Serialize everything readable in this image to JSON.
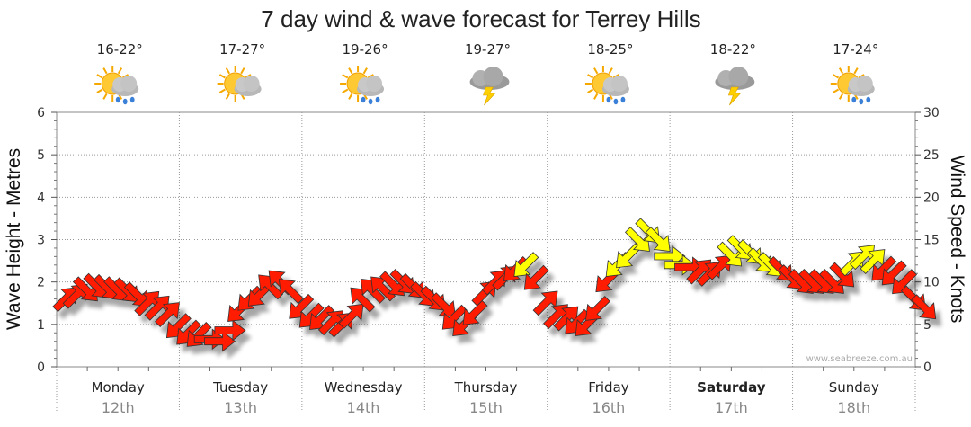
{
  "chart_data": {
    "type": "line",
    "title": "7 day wind & wave forecast for Terrey Hills",
    "ylabel_left": "Wave Height - Metres",
    "ylabel_right": "Wind Speed - Knots",
    "ylim_left": [
      0,
      6
    ],
    "ylim_right": [
      0,
      30
    ],
    "yticks_left": [
      "0",
      "1",
      "2",
      "3",
      "4",
      "5",
      "6"
    ],
    "yticks_right": [
      "0",
      "5",
      "10",
      "15",
      "20",
      "25",
      "30"
    ],
    "credit": "www.seabreeze.com.au",
    "days": [
      {
        "name": "Monday",
        "date": "12th",
        "temp": "16-22°",
        "icon": "sun-rain-icon",
        "bold": false
      },
      {
        "name": "Tuesday",
        "date": "13th",
        "temp": "17-27°",
        "icon": "sun-cloud-icon",
        "bold": false
      },
      {
        "name": "Wednesday",
        "date": "14th",
        "temp": "19-26°",
        "icon": "sun-rain-icon",
        "bold": false
      },
      {
        "name": "Thursday",
        "date": "15th",
        "temp": "19-27°",
        "icon": "storm-icon",
        "bold": false
      },
      {
        "name": "Friday",
        "date": "16th",
        "temp": "18-25°",
        "icon": "sun-rain-icon",
        "bold": false
      },
      {
        "name": "Saturday",
        "date": "17th",
        "temp": "18-22°",
        "icon": "storm-icon",
        "bold": true
      },
      {
        "name": "Sunday",
        "date": "18th",
        "temp": "17-24°",
        "icon": "sun-rain-icon",
        "bold": false
      }
    ],
    "series": [
      {
        "name": "Wind Speed (knots)",
        "x_hours": [
          0,
          6,
          12,
          18,
          24,
          30,
          36,
          42,
          48,
          54,
          60,
          66,
          72,
          78,
          84,
          90,
          96,
          102,
          108,
          114,
          120,
          126,
          132,
          138,
          144,
          150,
          156,
          162,
          168
        ],
        "values": [
          8,
          9.5,
          9,
          7,
          4,
          3,
          8,
          10,
          6,
          5,
          9,
          10,
          8,
          5,
          10,
          12,
          6,
          5,
          12,
          16,
          12,
          11,
          14,
          12,
          10,
          10,
          13,
          11,
          7
        ],
        "direction_deg": [
          45,
          135,
          135,
          45,
          225,
          90,
          225,
          315,
          225,
          45,
          315,
          135,
          135,
          225,
          45,
          225,
          45,
          225,
          225,
          135,
          90,
          45,
          135,
          135,
          135,
          135,
          45,
          225,
          135
        ]
      }
    ],
    "arrow_color_threshold_knots": 12,
    "arrow_colors": {
      "strong": "#ff1a00",
      "moderate": "#ffff00",
      "outline": "#333333"
    }
  }
}
